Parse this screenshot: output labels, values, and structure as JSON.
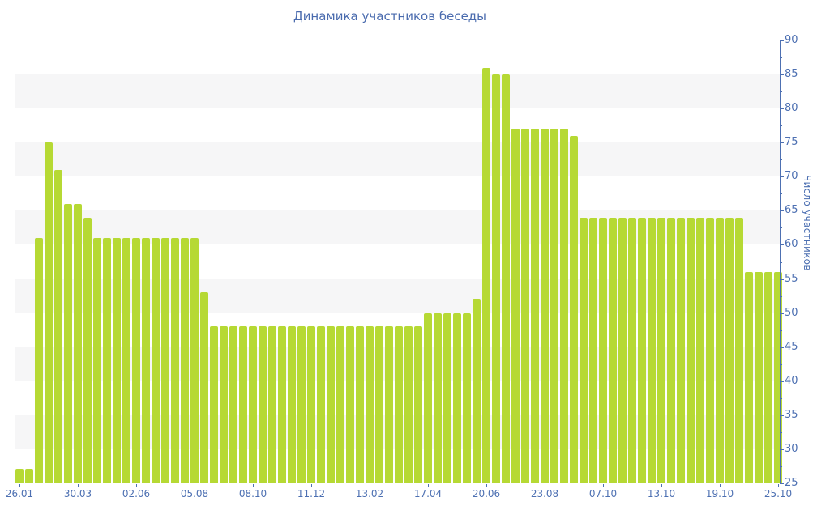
{
  "chart_data": {
    "type": "bar",
    "title": "Динамика участников беседы",
    "ylabel": "Число участников",
    "values": [
      27,
      27,
      61,
      75,
      71,
      66,
      66,
      64,
      61,
      61,
      61,
      61,
      61,
      61,
      61,
      61,
      61,
      61,
      61,
      53,
      48,
      48,
      48,
      48,
      48,
      48,
      48,
      48,
      48,
      48,
      48,
      48,
      48,
      48,
      48,
      48,
      48,
      48,
      48,
      48,
      48,
      48,
      50,
      50,
      50,
      50,
      50,
      52,
      86,
      85,
      85,
      77,
      77,
      77,
      77,
      77,
      77,
      76,
      64,
      64,
      64,
      64,
      64,
      64,
      64,
      64,
      64,
      64,
      64,
      64,
      64,
      64,
      64,
      64,
      64,
      56,
      56,
      56,
      56
    ],
    "x_tick_labels": [
      "26.01",
      "30.03",
      "02.06",
      "05.08",
      "08.10",
      "11.12",
      "13.02",
      "17.04",
      "20.06",
      "23.08",
      "07.10",
      "13.10",
      "19.10",
      "25.10"
    ],
    "x_tick_every": 6,
    "y_tick_labels": [
      90,
      85,
      80,
      75,
      70,
      65,
      60,
      55,
      50,
      45,
      40,
      35,
      30,
      25
    ],
    "y_min": 25,
    "y_max": 90,
    "y_step": 5,
    "grid": "horizontal striped bands, gray on odd 5-unit bands",
    "legend_position": "none",
    "bar_color": "#b6d934",
    "axis_color": "#4d70b2",
    "stripe_color": "#f6f6f7",
    "title_color": "#4a6bae"
  }
}
